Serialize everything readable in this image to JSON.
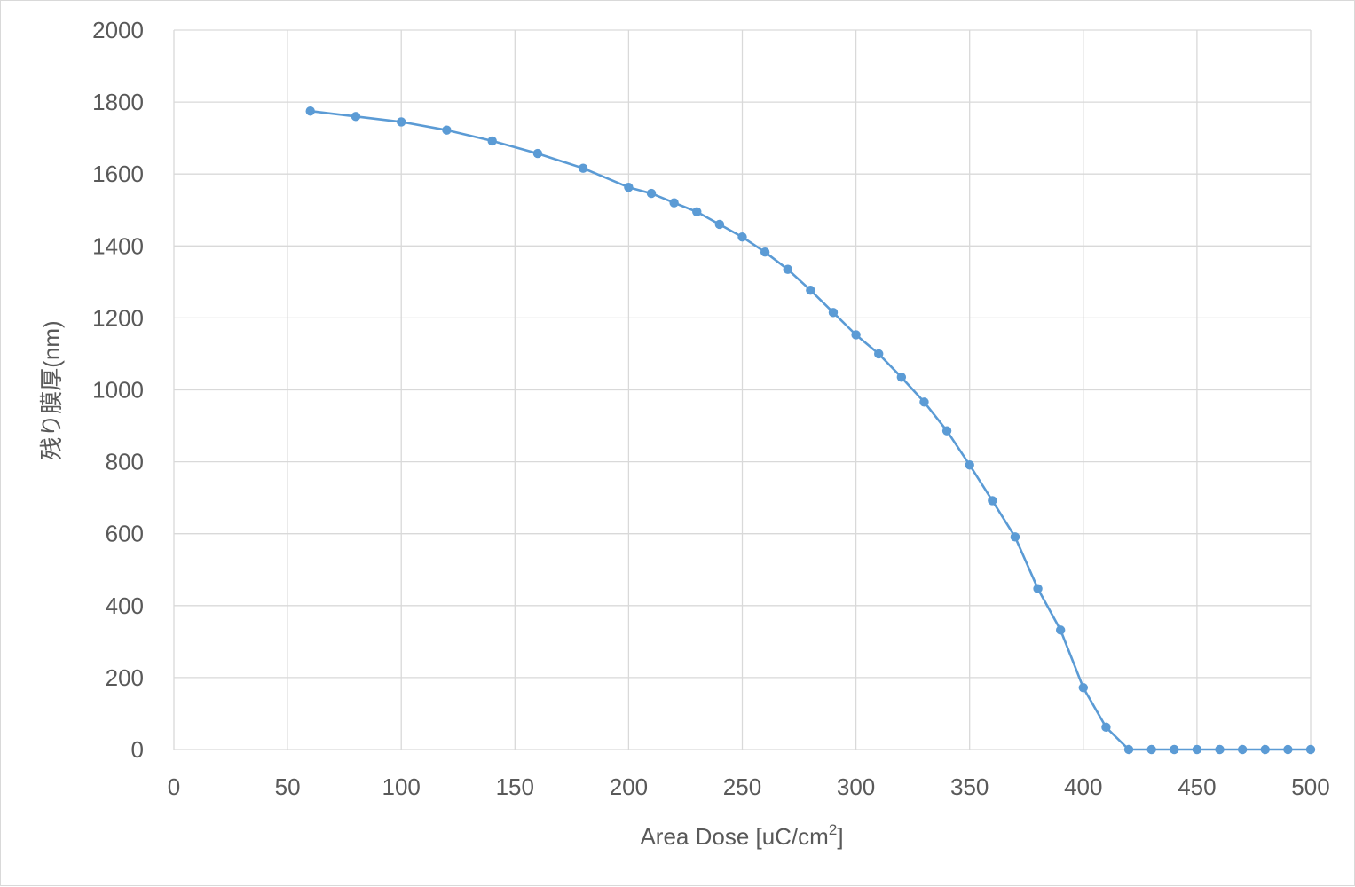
{
  "chart_data": {
    "type": "line",
    "xlabel": "Area Dose [uC/cm",
    "xlabel_sup": "2",
    "xlabel_close": "]",
    "ylabel": "残り膜厚(nm)",
    "xlim": [
      0,
      500
    ],
    "ylim": [
      0,
      2000
    ],
    "x_ticks": [
      "0",
      "50",
      "100",
      "150",
      "200",
      "250",
      "300",
      "350",
      "400",
      "450",
      "500"
    ],
    "y_ticks": [
      "0",
      "200",
      "400",
      "600",
      "800",
      "1000",
      "1200",
      "1400",
      "1600",
      "1800",
      "2000"
    ],
    "grid": true,
    "legend": "none",
    "series_color": "#5b9bd5",
    "series": [
      {
        "x": [
          60,
          80,
          100,
          120,
          140,
          160,
          180,
          200,
          210,
          220,
          230,
          240,
          250,
          260,
          270,
          280,
          290,
          300,
          310,
          320,
          330,
          340,
          350,
          360,
          370,
          380,
          390,
          400,
          410,
          420,
          430,
          440,
          450,
          460,
          470,
          480,
          490,
          500
        ],
        "y": [
          1775,
          1760,
          1745,
          1722,
          1692,
          1657,
          1616,
          1563,
          1546,
          1520,
          1495,
          1460,
          1425,
          1383,
          1335,
          1277,
          1215,
          1153,
          1100,
          1035,
          966,
          886,
          791,
          692,
          591,
          447,
          332,
          172,
          62,
          0,
          0,
          0,
          0,
          0,
          0,
          0,
          0,
          0
        ]
      }
    ]
  }
}
